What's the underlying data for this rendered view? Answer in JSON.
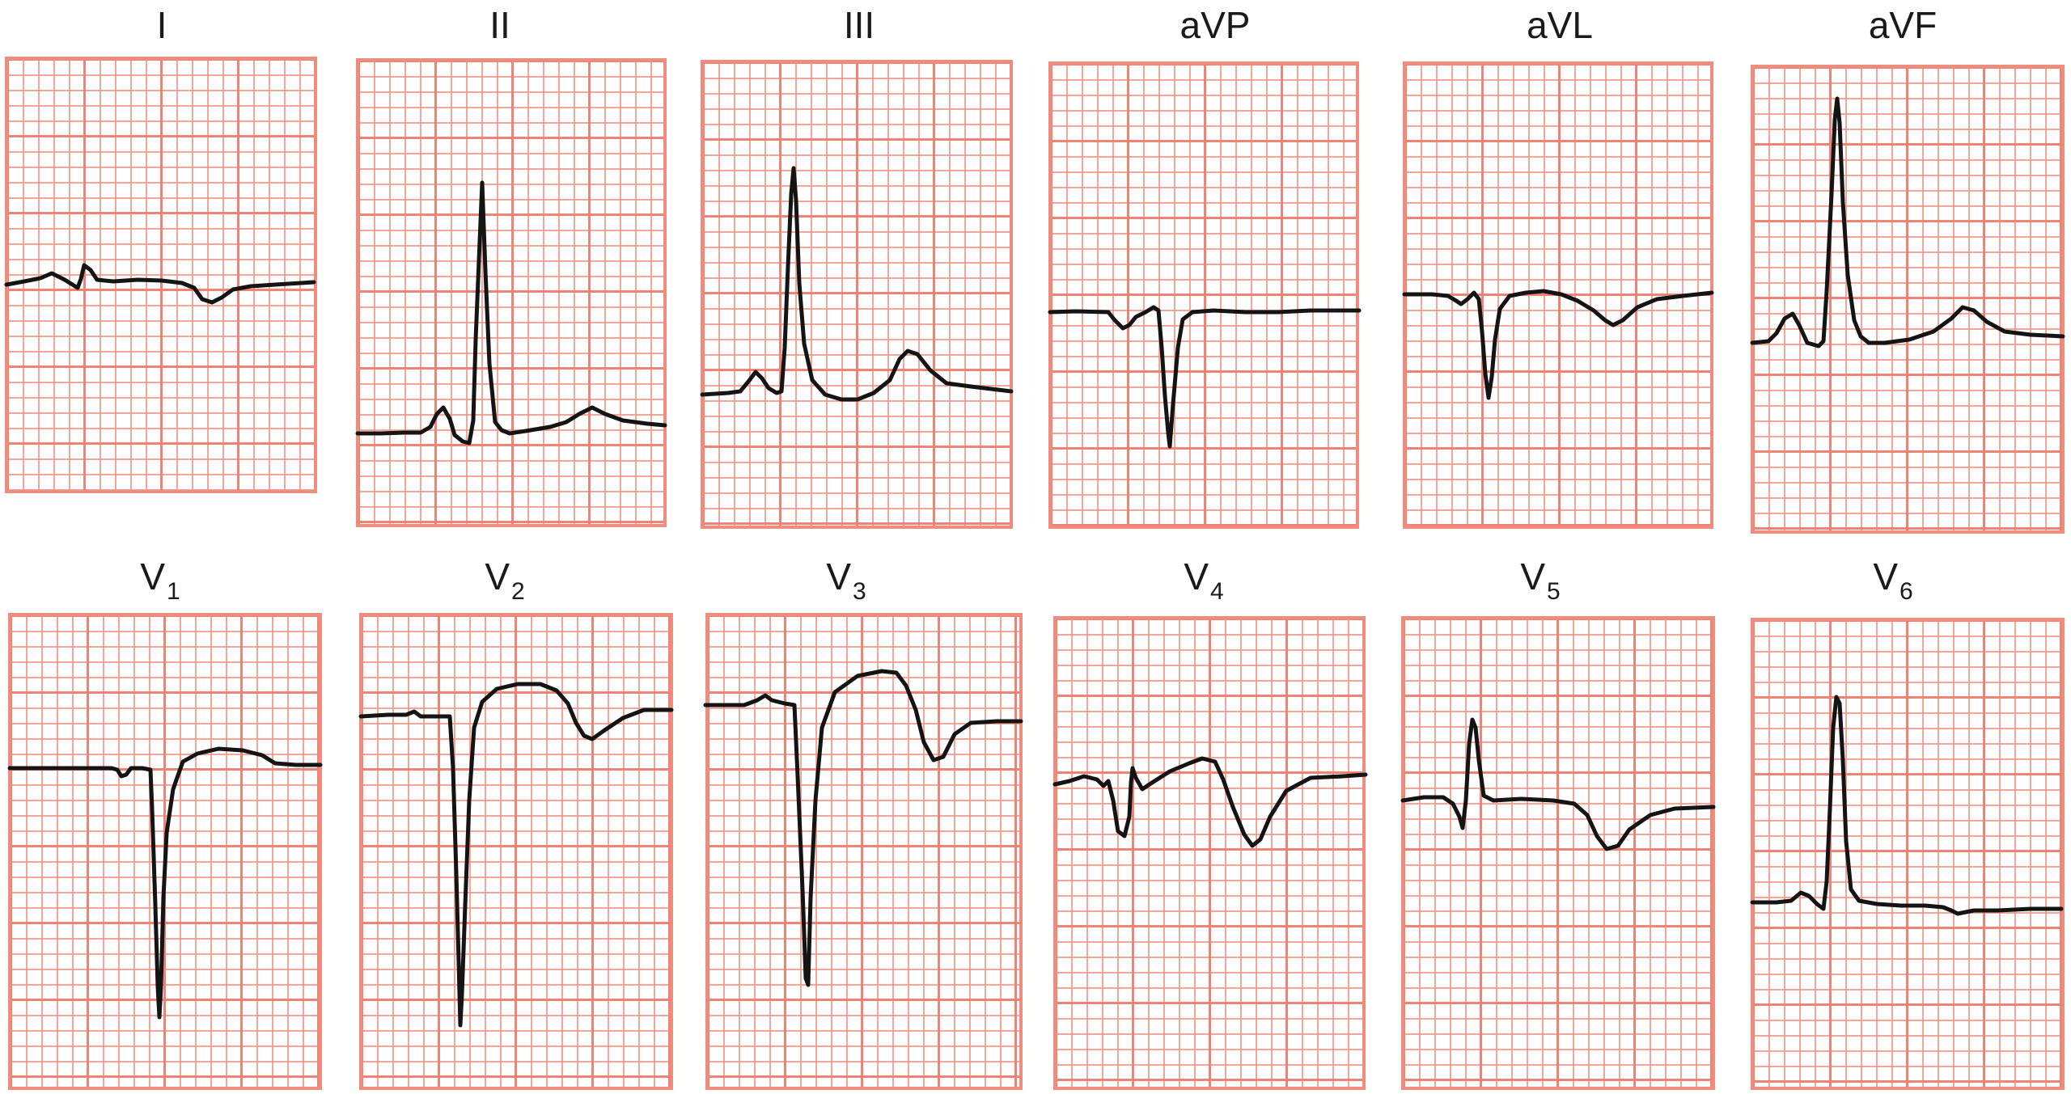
{
  "figure": {
    "leads": [
      {
        "id": "I",
        "label": "I",
        "sub": ""
      },
      {
        "id": "II",
        "label": "II",
        "sub": ""
      },
      {
        "id": "III",
        "label": "III",
        "sub": ""
      },
      {
        "id": "aVP",
        "label": "aVP",
        "sub": ""
      },
      {
        "id": "aVL",
        "label": "aVL",
        "sub": ""
      },
      {
        "id": "aVF",
        "label": "aVF",
        "sub": ""
      },
      {
        "id": "V1",
        "label": "V",
        "sub": "1"
      },
      {
        "id": "V2",
        "label": "V",
        "sub": "2"
      },
      {
        "id": "V3",
        "label": "V",
        "sub": "3"
      },
      {
        "id": "V4",
        "label": "V",
        "sub": "4"
      },
      {
        "id": "V5",
        "label": "V",
        "sub": "5"
      },
      {
        "id": "V6",
        "label": "V",
        "sub": "6"
      }
    ],
    "colors": {
      "grid": "#f08c7e",
      "trace": "#141414",
      "label": "#1a1a1a"
    }
  }
}
